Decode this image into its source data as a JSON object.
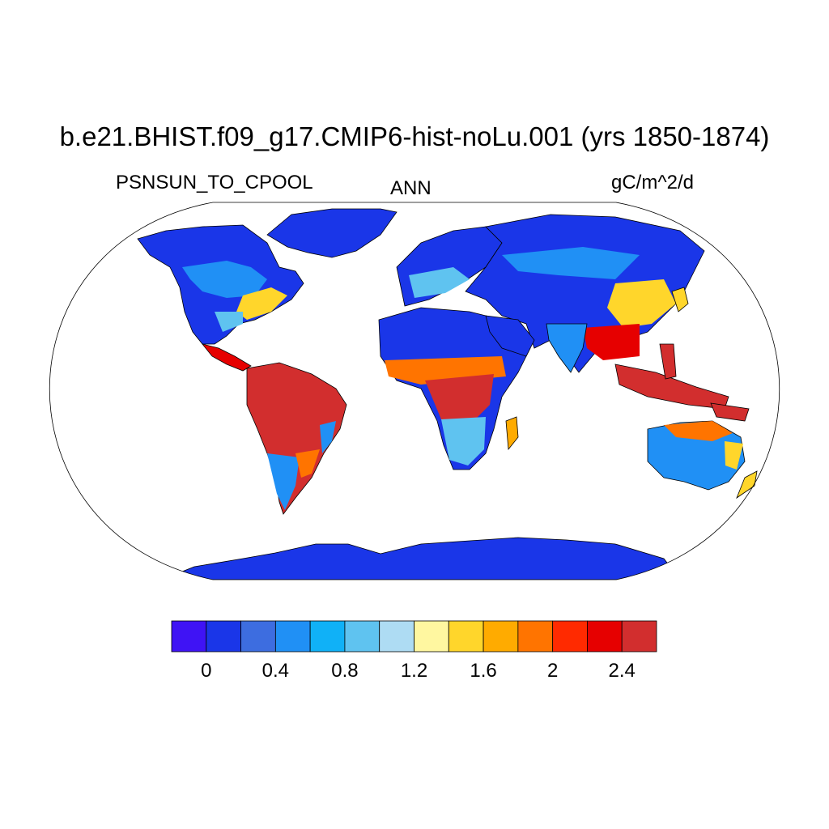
{
  "figure": {
    "title": "b.e21.BHIST.f09_g17.CMIP6-hist-noLu.001 (yrs 1850-1874)",
    "variable": "PSNSUN_TO_CPOOL",
    "period": "ANN",
    "units": "gC/m^2/d"
  },
  "colorbar": {
    "colors": [
      "#3f13f5",
      "#1a36e8",
      "#3d6de0",
      "#2090f5",
      "#10b1f7",
      "#5fc3f0",
      "#aedcf3",
      "#fff7a0",
      "#ffd62b",
      "#ffab00",
      "#ff7400",
      "#ff2a00",
      "#e60000",
      "#d22e2e"
    ],
    "tick_labels": [
      "0",
      "0.4",
      "0.8",
      "1.2",
      "1.6",
      "2",
      "2.4"
    ]
  },
  "map": {
    "projection": "Robinson",
    "ocean_color": "#ffffff",
    "coastline_color": "#000000"
  }
}
